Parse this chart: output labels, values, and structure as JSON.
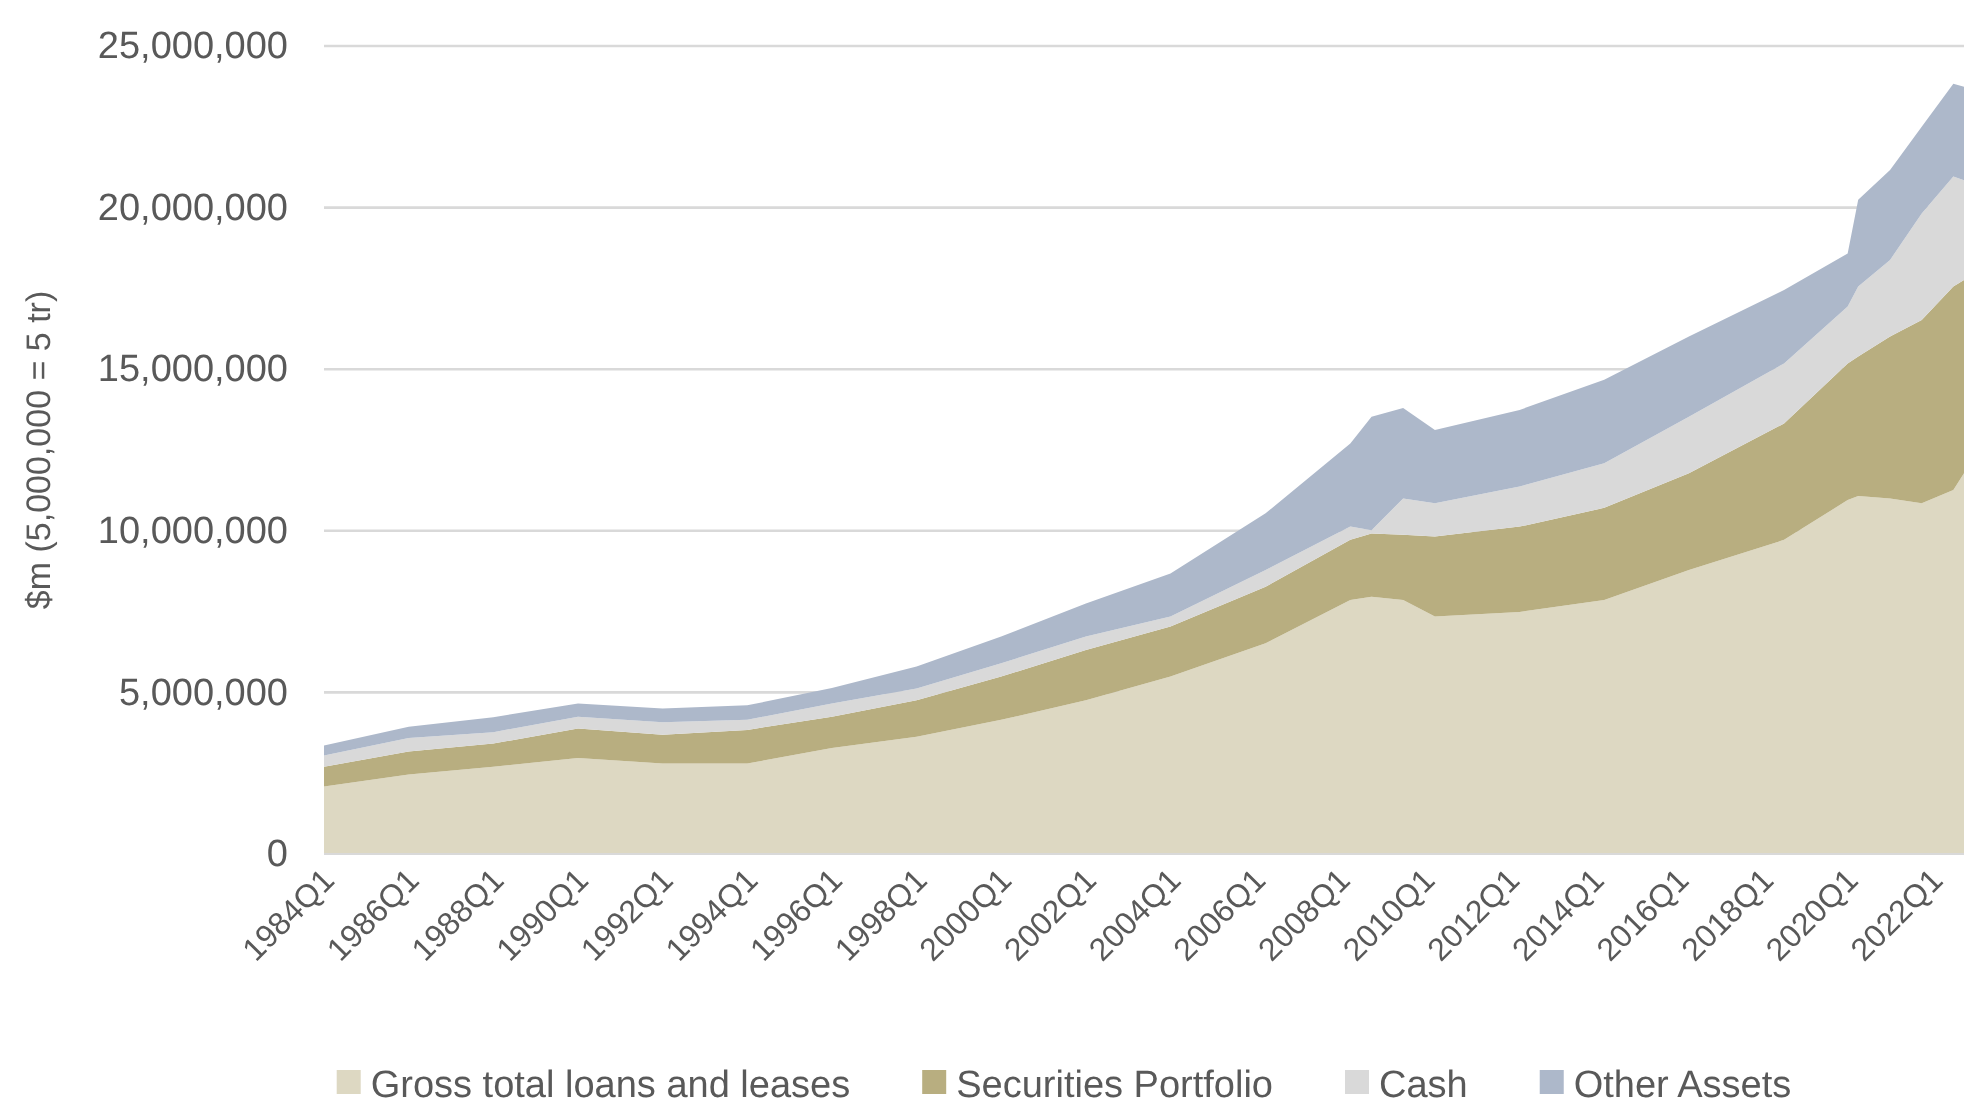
{
  "chart_data": {
    "type": "area",
    "stacked": true,
    "ylabel": "$m (5,000,000 = 5 tr)",
    "legend": "bottom",
    "grid": "y",
    "x": [
      "1984-01",
      "1986-01",
      "1988-01",
      "1990-01",
      "1992-01",
      "1994-01",
      "1996-01",
      "1998-01",
      "2000-01",
      "2002-01",
      "2004-01",
      "2006-04",
      "2008-04",
      "2008-10",
      "2009-07",
      "2010-04",
      "2012-04",
      "2014-04",
      "2016-04",
      "2018-07",
      "2020-01",
      "2020-04",
      "2021-01",
      "2021-10",
      "2022-07",
      "2022-10"
    ],
    "xlim": [
      "1984-01",
      "2022-10"
    ],
    "xticks": [
      {
        "value": "1984-01",
        "label": "1984Q1"
      },
      {
        "value": "1986-01",
        "label": "1986Q1"
      },
      {
        "value": "1988-01",
        "label": "1988Q1"
      },
      {
        "value": "1990-01",
        "label": "1990Q1"
      },
      {
        "value": "1992-01",
        "label": "1992Q1"
      },
      {
        "value": "1994-01",
        "label": "1994Q1"
      },
      {
        "value": "1996-01",
        "label": "1996Q1"
      },
      {
        "value": "1998-01",
        "label": "1998Q1"
      },
      {
        "value": "2000-01",
        "label": "2000Q1"
      },
      {
        "value": "2002-01",
        "label": "2002Q1"
      },
      {
        "value": "2004-01",
        "label": "2004Q1"
      },
      {
        "value": "2006-01",
        "label": "2006Q1"
      },
      {
        "value": "2008-01",
        "label": "2008Q1"
      },
      {
        "value": "2010-01",
        "label": "2010Q1"
      },
      {
        "value": "2012-01",
        "label": "2012Q1"
      },
      {
        "value": "2014-01",
        "label": "2014Q1"
      },
      {
        "value": "2016-01",
        "label": "2016Q1"
      },
      {
        "value": "2018-01",
        "label": "2018Q1"
      },
      {
        "value": "2020-01",
        "label": "2020Q1"
      },
      {
        "value": "2022-01",
        "label": "2022Q1"
      }
    ],
    "ylim": [
      0,
      25000000
    ],
    "yticks": [
      0,
      {
        "value": 5000000,
        "label": "5,000,000"
      },
      {
        "value": 10000000,
        "label": "10,000,000"
      },
      {
        "value": 15000000,
        "label": "15,000,000"
      },
      {
        "value": 20000000,
        "label": "20,000,000"
      },
      {
        "value": 25000000,
        "label": "25,000,000"
      }
    ],
    "series": [
      {
        "name": "Gross total loans and leases",
        "color": "#ddd8c2",
        "values": [
          2090000,
          2460000,
          2700000,
          2970000,
          2800000,
          2800000,
          3280000,
          3630000,
          4150000,
          4760000,
          5490000,
          6520000,
          7860000,
          7960000,
          7860000,
          7350000,
          7490000,
          7860000,
          8790000,
          9720000,
          10950000,
          11080000,
          11000000,
          10850000,
          11260000,
          11780000
        ]
      },
      {
        "name": "Securities Portfolio",
        "color": "#b8ae80",
        "values": [
          610000,
          710000,
          720000,
          910000,
          890000,
          1040000,
          970000,
          1130000,
          1340000,
          1550000,
          1550000,
          1750000,
          1860000,
          1960000,
          2020000,
          2470000,
          2640000,
          2850000,
          2990000,
          3600000,
          4230000,
          4310000,
          5010000,
          5670000,
          6300000,
          5980000
        ]
      },
      {
        "name": "Cash",
        "color": "#d9d9d9",
        "values": [
          350000,
          420000,
          350000,
          370000,
          390000,
          310000,
          410000,
          360000,
          410000,
          420000,
          310000,
          520000,
          410000,
          100000,
          1120000,
          1030000,
          1240000,
          1380000,
          1750000,
          1860000,
          1760000,
          2170000,
          2370000,
          3300000,
          3400000,
          3090000
        ]
      },
      {
        "name": "Other Assets",
        "color": "#adb8ca",
        "values": [
          310000,
          350000,
          460000,
          410000,
          420000,
          450000,
          480000,
          680000,
          830000,
          1020000,
          1330000,
          1750000,
          2570000,
          3510000,
          2800000,
          2270000,
          2370000,
          2580000,
          2480000,
          2270000,
          1640000,
          2680000,
          2780000,
          2680000,
          2870000,
          2890000
        ]
      }
    ]
  }
}
